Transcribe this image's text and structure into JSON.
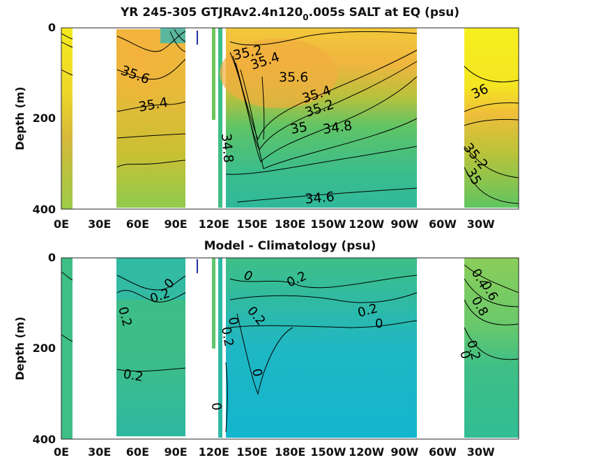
{
  "chart_data": [
    {
      "type": "heatmap",
      "title_pre": "YR 245-305 GTJRAv2.4n120",
      "title_sub": "0",
      "title_post": ".005s SALT at EQ (psu)",
      "ylabel": "Depth (m)",
      "xticks": [
        "0E",
        "30E",
        "60E",
        "90E",
        "120E",
        "150E",
        "180E",
        "150W",
        "120W",
        "90W",
        "60W",
        "30W"
      ],
      "yticks": [
        "0",
        "200",
        "400"
      ],
      "ylim": [
        0,
        400
      ],
      "contour_labels": [
        "35.6",
        "35.4",
        "35.2",
        "35.4",
        "35.6",
        "35.4",
        "35.2",
        "35",
        "34.8",
        "34.8",
        "34.6",
        "36",
        "35.2",
        "35"
      ]
    },
    {
      "type": "heatmap",
      "title": "Model - Climatology (psu)",
      "ylabel": "Depth (m)",
      "xticks": [
        "0E",
        "30E",
        "60E",
        "90E",
        "120E",
        "150E",
        "180E",
        "150W",
        "120W",
        "90W",
        "60W",
        "30W"
      ],
      "yticks": [
        "0",
        "200",
        "400"
      ],
      "ylim": [
        0,
        400
      ],
      "contour_labels": [
        "0.2",
        "0.2",
        "0",
        "0.2",
        "0",
        "0.2",
        "0.2",
        "0",
        "0.2",
        "0",
        "0",
        "0.2",
        "0",
        "0.4",
        "0.6",
        "0.8",
        "0",
        "0.2"
      ]
    }
  ],
  "colors": {
    "salinity_high": "#f5f023",
    "salinity_mid": "#f0b53a",
    "salinity_low": "#2bb5ad",
    "diff_high": "#8fcf5a",
    "diff_mid": "#2ab7a8",
    "diff_low": "#1fb6cc",
    "contour": "#000000"
  }
}
